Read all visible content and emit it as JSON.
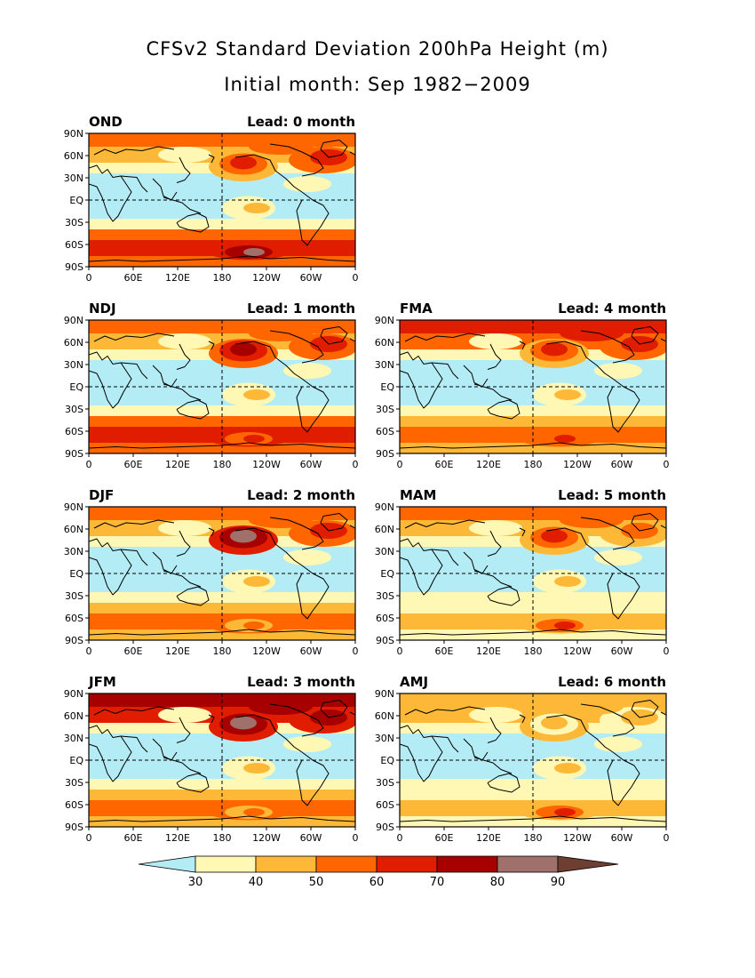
{
  "chart_data": {
    "type": "heatmap",
    "title": "CFSv2 Standard Deviation 200hPa Height (m)",
    "subtitle": "Initial month: Sep 1982−2009",
    "x_ticks": [
      "0",
      "60E",
      "120E",
      "180",
      "120W",
      "60W",
      "0"
    ],
    "y_ticks": [
      "90N",
      "60N",
      "30N",
      "EQ",
      "30S",
      "60S",
      "90S"
    ],
    "lead_prefix": "Lead:",
    "lead_suffix": "month",
    "colorbar": {
      "levels": [
        "30",
        "40",
        "50",
        "60",
        "70",
        "80",
        "90"
      ],
      "colors": [
        "#b3ecf5",
        "#fff8b4",
        "#fdb837",
        "#ff6600",
        "#e11d00",
        "#a60000",
        "#a0706a",
        "#6e3e33"
      ]
    },
    "panels": [
      {
        "season": "OND",
        "lead": "0",
        "map": {
          "arctic": 3,
          "pacific_ridge": 4,
          "n_atlantic": 4,
          "tropics": 0,
          "southern": 4,
          "polar_peak": 6
        }
      },
      {
        "season": "NDJ",
        "lead": "1",
        "map": {
          "arctic": 3,
          "pacific_ridge": 5,
          "n_atlantic": 4,
          "tropics": 0,
          "southern": 4,
          "polar_peak": 4
        }
      },
      {
        "season": "FMA",
        "lead": "4",
        "map": {
          "arctic": 4,
          "pacific_ridge": 4,
          "n_atlantic": 4,
          "tropics": 0,
          "southern": 3,
          "polar_peak": 4
        }
      },
      {
        "season": "DJF",
        "lead": "2",
        "map": {
          "arctic": 3,
          "pacific_ridge": 6,
          "n_atlantic": 4,
          "tropics": 0,
          "southern": 3,
          "polar_peak": 3
        }
      },
      {
        "season": "MAM",
        "lead": "5",
        "map": {
          "arctic": 3,
          "pacific_ridge": 4,
          "n_atlantic": 3,
          "tropics": 0,
          "southern": 2,
          "polar_peak": 4
        }
      },
      {
        "season": "JFM",
        "lead": "3",
        "map": {
          "arctic": 5,
          "pacific_ridge": 6,
          "n_atlantic": 5,
          "tropics": 0,
          "southern": 3,
          "polar_peak": 3
        }
      },
      {
        "season": "AMJ",
        "lead": "6",
        "map": {
          "arctic": 2,
          "pacific_ridge": 2,
          "n_atlantic": 2,
          "tropics": 0,
          "southern": 2,
          "polar_peak": 4
        }
      }
    ]
  }
}
